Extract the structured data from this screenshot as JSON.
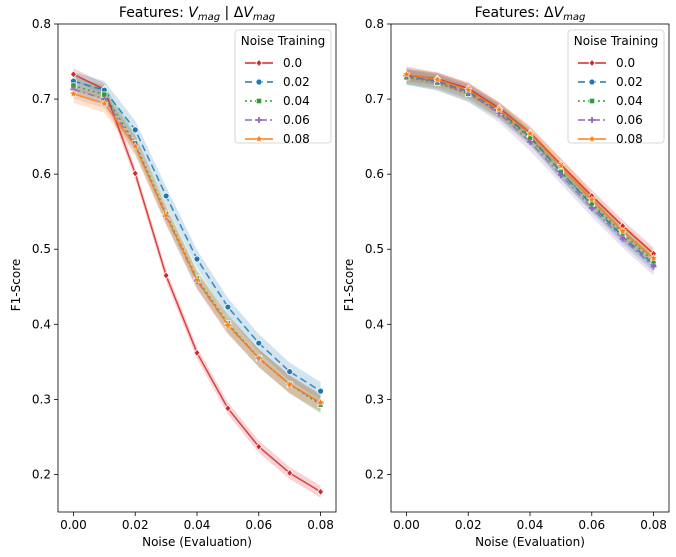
{
  "chart_data": [
    {
      "type": "line",
      "title": "Features: V_mag | ΔV_mag",
      "title_parts": {
        "prefix": "Features: ",
        "v": "V",
        "sub1": "mag",
        "sep": " | Δ",
        "v2": "V",
        "sub2": "mag"
      },
      "xlabel": "Noise (Evaluation)",
      "ylabel": "F1-Score",
      "xlim": [
        -0.005,
        0.085
      ],
      "ylim": [
        0.15,
        0.8
      ],
      "xticks": [
        "0.00",
        "0.02",
        "0.04",
        "0.06",
        "0.08"
      ],
      "xtick_values": [
        0.0,
        0.02,
        0.04,
        0.06,
        0.08
      ],
      "yticks": [
        "0.2",
        "0.3",
        "0.4",
        "0.5",
        "0.6",
        "0.7",
        "0.8"
      ],
      "ytick_values": [
        0.2,
        0.3,
        0.4,
        0.5,
        0.6,
        0.7,
        0.8
      ],
      "grid": false,
      "legend_title": "Noise Training",
      "legend_position": "top-right",
      "x": [
        0.0,
        0.01,
        0.02,
        0.03,
        0.04,
        0.05,
        0.06,
        0.07,
        0.08
      ],
      "series": [
        {
          "name": "0.0",
          "color": "#d62728",
          "dash": "",
          "marker": "diamond",
          "band": 0.008,
          "values": [
            0.733,
            0.713,
            0.601,
            0.465,
            0.362,
            0.288,
            0.237,
            0.202,
            0.177
          ]
        },
        {
          "name": "0.02",
          "color": "#1f77b4",
          "dash": "7,4",
          "marker": "circle",
          "band": 0.012,
          "values": [
            0.724,
            0.712,
            0.659,
            0.571,
            0.487,
            0.423,
            0.375,
            0.337,
            0.311
          ]
        },
        {
          "name": "0.04",
          "color": "#2ca02c",
          "dash": "2,3",
          "marker": "square",
          "band": 0.012,
          "values": [
            0.718,
            0.706,
            0.641,
            0.547,
            0.461,
            0.401,
            0.355,
            0.32,
            0.293
          ]
        },
        {
          "name": "0.06",
          "color": "#9467bd",
          "dash": "7,3,2,3",
          "marker": "plus",
          "band": 0.012,
          "values": [
            0.713,
            0.7,
            0.639,
            0.544,
            0.458,
            0.399,
            0.355,
            0.32,
            0.295
          ]
        },
        {
          "name": "0.08",
          "color": "#ff7f0e",
          "dash": "",
          "marker": "star",
          "band": 0.012,
          "values": [
            0.707,
            0.694,
            0.637,
            0.545,
            0.459,
            0.399,
            0.355,
            0.32,
            0.296
          ]
        }
      ]
    },
    {
      "type": "line",
      "title": "Features: ΔV_mag",
      "title_parts": {
        "prefix": "Features: Δ",
        "v": "V",
        "sub1": "mag"
      },
      "xlabel": "Noise (Evaluation)",
      "ylabel": "F1-Score",
      "xlim": [
        -0.005,
        0.085
      ],
      "ylim": [
        0.15,
        0.8
      ],
      "xticks": [
        "0.00",
        "0.02",
        "0.04",
        "0.06",
        "0.08"
      ],
      "xtick_values": [
        0.0,
        0.02,
        0.04,
        0.06,
        0.08
      ],
      "yticks": [
        "0.2",
        "0.3",
        "0.4",
        "0.5",
        "0.6",
        "0.7",
        "0.8"
      ],
      "ytick_values": [
        0.2,
        0.3,
        0.4,
        0.5,
        0.6,
        0.7,
        0.8
      ],
      "grid": false,
      "legend_title": "Noise Training",
      "legend_position": "top-right",
      "x": [
        0.0,
        0.01,
        0.02,
        0.03,
        0.04,
        0.05,
        0.06,
        0.07,
        0.08
      ],
      "series": [
        {
          "name": "0.0",
          "color": "#d62728",
          "dash": "",
          "marker": "diamond",
          "band": 0.008,
          "values": [
            0.732,
            0.727,
            0.714,
            0.688,
            0.655,
            0.613,
            0.571,
            0.531,
            0.494
          ]
        },
        {
          "name": "0.02",
          "color": "#1f77b4",
          "dash": "7,4",
          "marker": "circle",
          "band": 0.01,
          "values": [
            0.73,
            0.724,
            0.71,
            0.685,
            0.65,
            0.603,
            0.559,
            0.517,
            0.48
          ]
        },
        {
          "name": "0.04",
          "color": "#2ca02c",
          "dash": "2,3",
          "marker": "square",
          "band": 0.01,
          "values": [
            0.729,
            0.722,
            0.707,
            0.683,
            0.648,
            0.603,
            0.561,
            0.521,
            0.484
          ]
        },
        {
          "name": "0.06",
          "color": "#9467bd",
          "dash": "7,3,2,3",
          "marker": "plus",
          "band": 0.012,
          "values": [
            0.731,
            0.723,
            0.708,
            0.681,
            0.643,
            0.599,
            0.555,
            0.514,
            0.477
          ]
        },
        {
          "name": "0.08",
          "color": "#ff7f0e",
          "dash": "",
          "marker": "star",
          "band": 0.01,
          "values": [
            0.733,
            0.726,
            0.712,
            0.686,
            0.654,
            0.611,
            0.566,
            0.524,
            0.488
          ]
        }
      ]
    }
  ]
}
